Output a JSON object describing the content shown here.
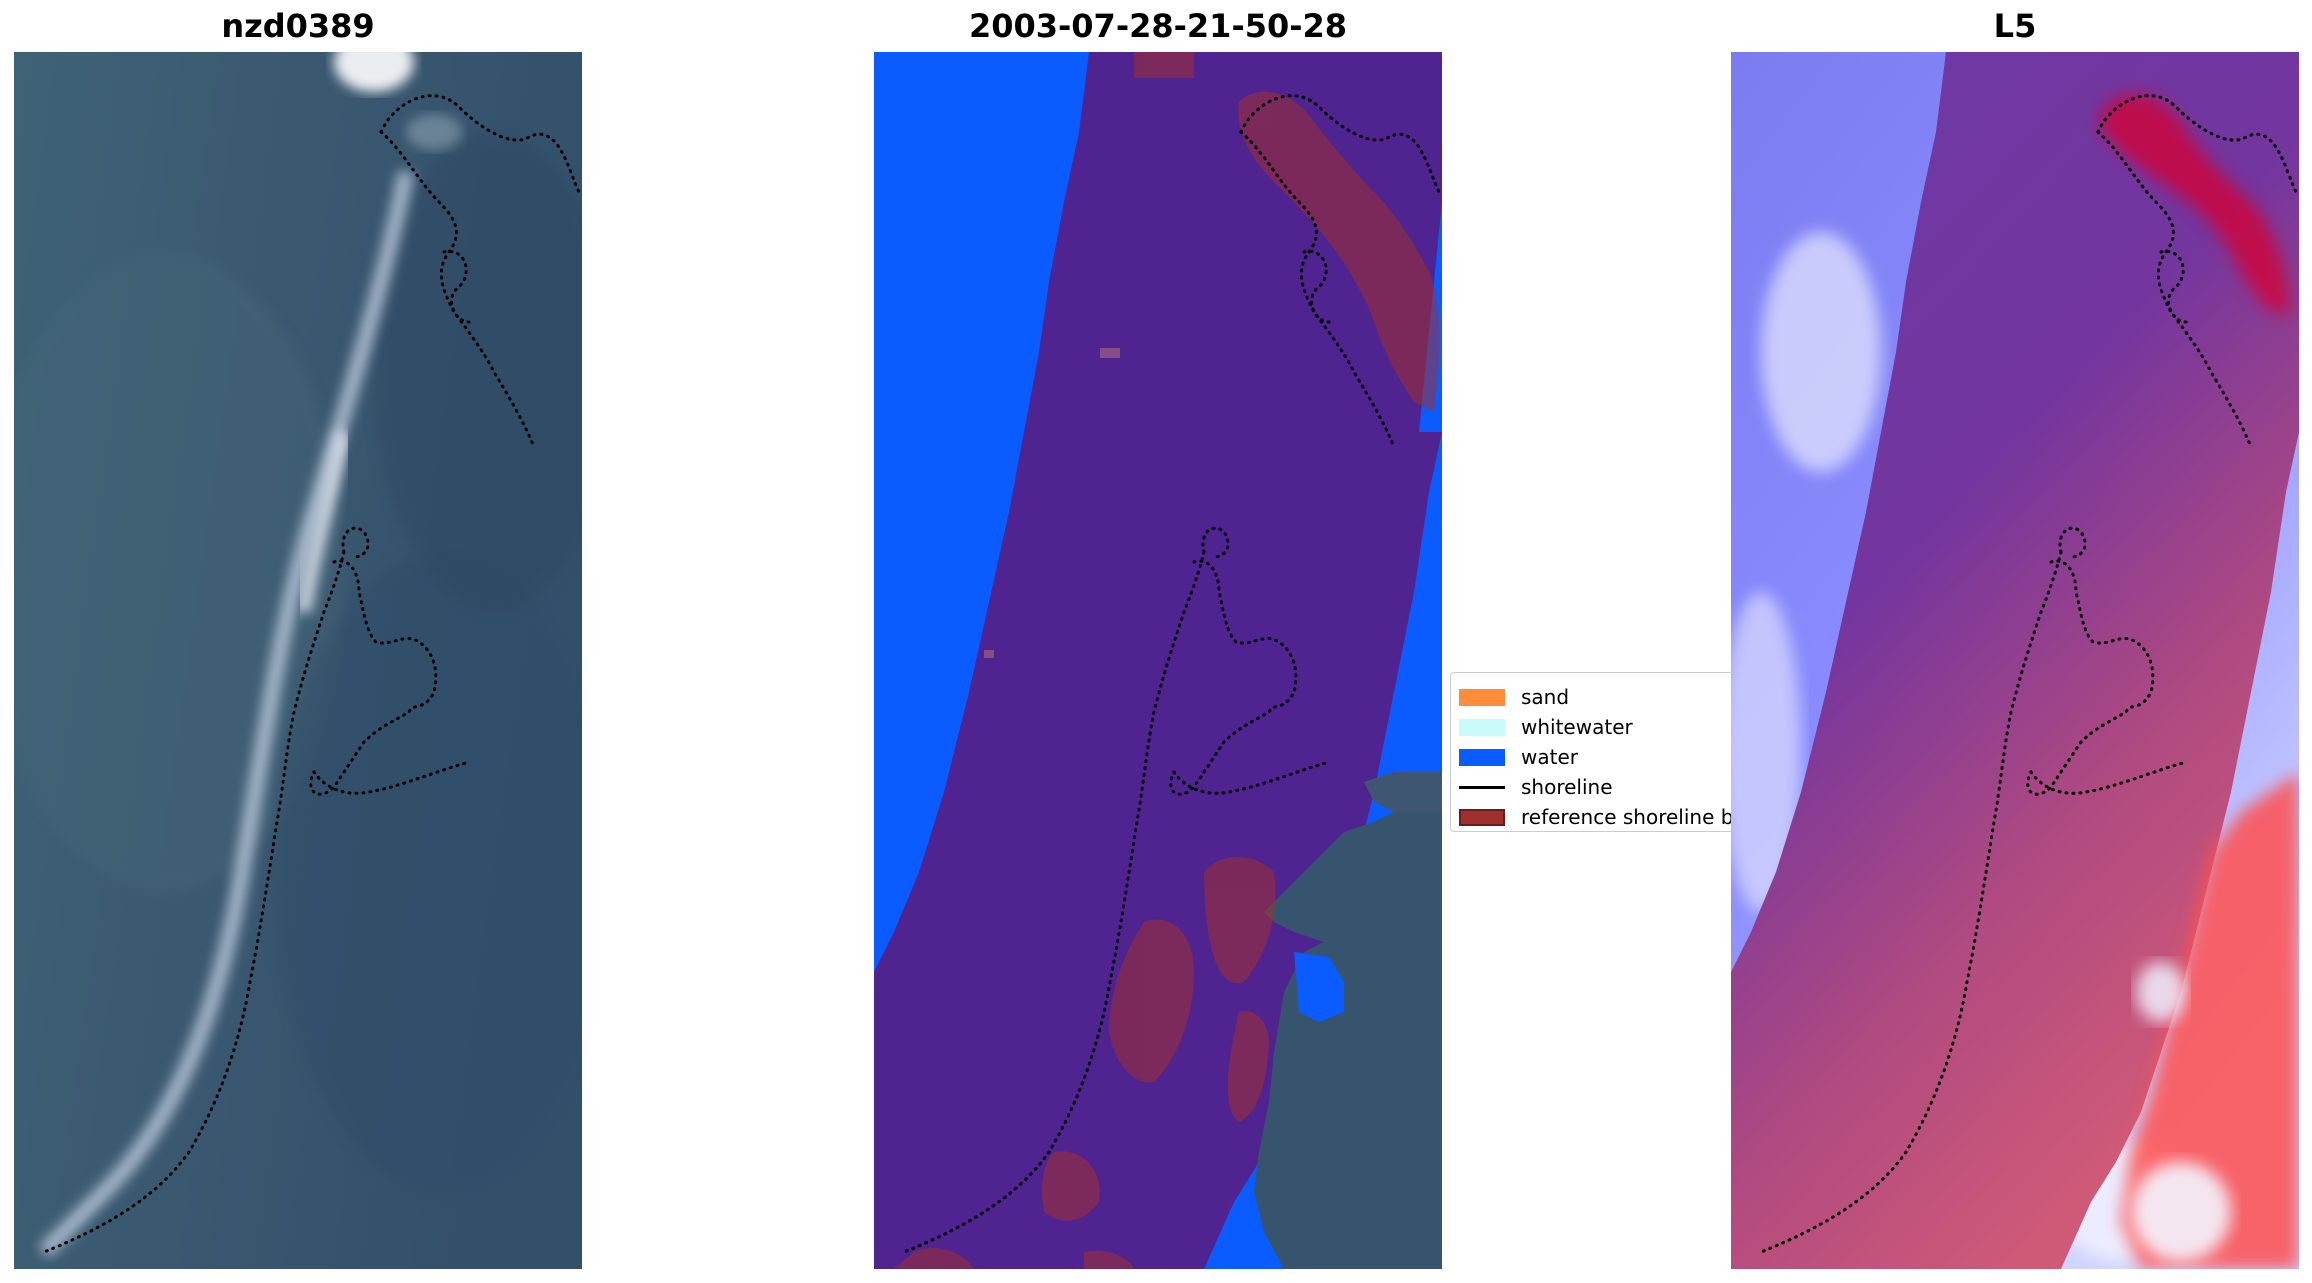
{
  "panels": [
    {
      "title": "nzd0389"
    },
    {
      "title": "2003-07-28-21-50-28"
    },
    {
      "title": "L5"
    }
  ],
  "legend": {
    "items": [
      {
        "label": "sand",
        "color": "#ff8c3a",
        "kind": "patch"
      },
      {
        "label": "whitewater",
        "color": "#c8fbfa",
        "kind": "patch"
      },
      {
        "label": "water",
        "color": "#0b5cff",
        "kind": "patch"
      },
      {
        "label": "shoreline",
        "color": "#000000",
        "kind": "line"
      },
      {
        "label": "reference shoreline b",
        "color": "#a03030",
        "kind": "patch"
      }
    ]
  },
  "colors": {
    "rgb_background": "#36546e",
    "classified_land": "#4f2390",
    "classified_water": "#0b5cff",
    "reference_buffer": "#a03030",
    "index_negative": "#5050ff",
    "index_positive": "#ff3030",
    "index_mid": "#7a3aa0",
    "reference_shoreline": "#000000"
  }
}
